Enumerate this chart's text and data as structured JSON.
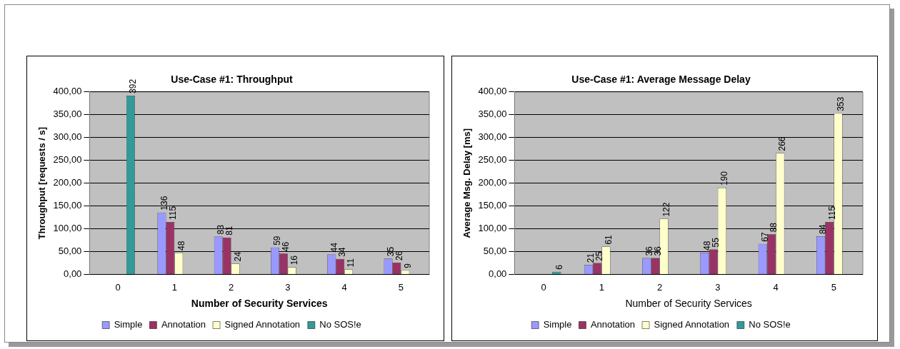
{
  "chart_data": [
    {
      "type": "bar",
      "title": "Use-Case #1: Throughput",
      "xlabel": "Number of Security Services",
      "ylabel": "Throughput [requests / s]",
      "categories": [
        "0",
        "1",
        "2",
        "3",
        "4",
        "5"
      ],
      "series": [
        {
          "name": "Simple",
          "color": "#9999ff",
          "values": [
            null,
            136,
            83,
            59,
            44,
            35
          ]
        },
        {
          "name": "Annotation",
          "color": "#993366",
          "values": [
            null,
            115,
            81,
            46,
            34,
            26
          ]
        },
        {
          "name": "Signed Annotation",
          "color": "#ffffcc",
          "values": [
            null,
            48,
            24,
            16,
            11,
            9
          ]
        },
        {
          "name": "No SOS!e",
          "color": "#339999",
          "values": [
            392,
            null,
            null,
            null,
            null,
            null
          ]
        }
      ],
      "ylim": [
        0,
        400
      ],
      "yticks": [
        {
          "value": 0,
          "label": "0,00"
        },
        {
          "value": 50,
          "label": "50,00"
        },
        {
          "value": 100,
          "label": "100,00"
        },
        {
          "value": 150,
          "label": "150,00"
        },
        {
          "value": 200,
          "label": "200,00"
        },
        {
          "value": 250,
          "label": "250,00"
        },
        {
          "value": 300,
          "label": "300,00"
        },
        {
          "value": 350,
          "label": "350,00"
        },
        {
          "value": 400,
          "label": "400,00"
        }
      ],
      "grid": "y",
      "legend": "bottom",
      "data_labels": true
    },
    {
      "type": "bar",
      "title": "Use-Case #1: Average Message Delay",
      "xlabel": "Number of Security Services",
      "ylabel": "Average Msg. Delay [ms]",
      "categories": [
        "0",
        "1",
        "2",
        "3",
        "4",
        "5"
      ],
      "series": [
        {
          "name": "Simple",
          "color": "#9999ff",
          "values": [
            null,
            21,
            36,
            48,
            67,
            84
          ]
        },
        {
          "name": "Annotation",
          "color": "#993366",
          "values": [
            null,
            25,
            36,
            55,
            88,
            115
          ]
        },
        {
          "name": "Signed Annotation",
          "color": "#ffffcc",
          "values": [
            null,
            61,
            122,
            190,
            266,
            353
          ]
        },
        {
          "name": "No SOS!e",
          "color": "#339999",
          "values": [
            6,
            null,
            null,
            null,
            null,
            null
          ]
        }
      ],
      "ylim": [
        0,
        400
      ],
      "yticks": [
        {
          "value": 0,
          "label": "0,00"
        },
        {
          "value": 50,
          "label": "50,00"
        },
        {
          "value": 100,
          "label": "100,00"
        },
        {
          "value": 150,
          "label": "150,00"
        },
        {
          "value": 200,
          "label": "200,00"
        },
        {
          "value": 250,
          "label": "250,00"
        },
        {
          "value": 300,
          "label": "300,00"
        },
        {
          "value": 350,
          "label": "350,00"
        },
        {
          "value": 400,
          "label": "400,00"
        }
      ],
      "grid": "y",
      "legend": "bottom",
      "data_labels": true
    }
  ]
}
